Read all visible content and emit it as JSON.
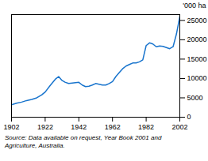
{
  "chart_data": {
    "type": "line",
    "ylabel": "'000 ha",
    "source": "Source: Data available on request, Year Book 2001 and\nAgriculture, Australia.",
    "color": "#1874CD",
    "grid": false,
    "x": [
      1902,
      1905,
      1908,
      1911,
      1914,
      1917,
      1920,
      1922,
      1925,
      1928,
      1930,
      1932,
      1934,
      1936,
      1938,
      1940,
      1942,
      1944,
      1946,
      1948,
      1950,
      1952,
      1954,
      1956,
      1958,
      1960,
      1962,
      1964,
      1966,
      1968,
      1970,
      1972,
      1974,
      1976,
      1978,
      1980,
      1982,
      1984,
      1986,
      1988,
      1990,
      1992,
      1994,
      1996,
      1998,
      2000,
      2002
    ],
    "values": [
      3200,
      3600,
      3900,
      4300,
      4600,
      5000,
      5800,
      6500,
      8200,
      9800,
      10500,
      9500,
      9000,
      8700,
      8800,
      8900,
      9000,
      8300,
      7900,
      8000,
      8300,
      8700,
      8500,
      8300,
      8300,
      8700,
      9200,
      10500,
      11500,
      12500,
      13200,
      13600,
      14000,
      14000,
      14300,
      14800,
      18500,
      19200,
      18900,
      18200,
      18400,
      18300,
      18000,
      17700,
      18200,
      21500,
      26000
    ],
    "xlim": [
      1902,
      2002
    ],
    "ylim": [
      0,
      26500
    ],
    "xticks": [
      1902,
      1922,
      1942,
      1962,
      1982,
      2002
    ],
    "yticks": [
      0,
      5000,
      10000,
      15000,
      20000,
      25000
    ]
  }
}
